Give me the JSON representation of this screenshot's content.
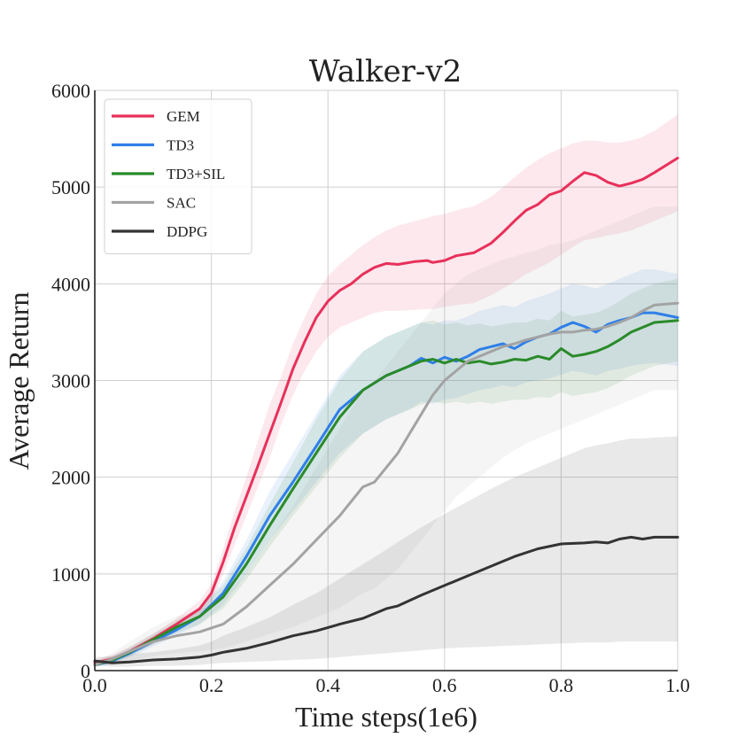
{
  "chart_data": {
    "type": "line",
    "title": "Walker-v2",
    "xlabel": "Time steps(1e6)",
    "ylabel": "Average Return",
    "xlim": [
      0,
      1.0
    ],
    "ylim": [
      0,
      6000
    ],
    "xticks": [
      "0.0",
      "0.2",
      "0.4",
      "0.6",
      "0.8",
      "1.0"
    ],
    "yticks": [
      "0",
      "1000",
      "2000",
      "3000",
      "4000",
      "5000",
      "6000"
    ],
    "grid": true,
    "legend_position": "top-left",
    "series": [
      {
        "name": "GEM",
        "color": "#e8305a",
        "x": [
          0.0,
          0.03,
          0.06,
          0.1,
          0.14,
          0.18,
          0.2,
          0.22,
          0.24,
          0.26,
          0.28,
          0.3,
          0.32,
          0.34,
          0.36,
          0.38,
          0.4,
          0.42,
          0.44,
          0.46,
          0.48,
          0.5,
          0.52,
          0.55,
          0.57,
          0.58,
          0.6,
          0.62,
          0.65,
          0.68,
          0.7,
          0.72,
          0.74,
          0.76,
          0.78,
          0.8,
          0.82,
          0.84,
          0.86,
          0.88,
          0.9,
          0.92,
          0.94,
          0.96,
          1.0
        ],
        "y": [
          80,
          120,
          200,
          330,
          480,
          640,
          800,
          1120,
          1480,
          1800,
          2120,
          2450,
          2780,
          3120,
          3400,
          3650,
          3820,
          3930,
          4000,
          4100,
          4170,
          4210,
          4200,
          4230,
          4240,
          4220,
          4240,
          4290,
          4320,
          4420,
          4530,
          4650,
          4760,
          4820,
          4920,
          4960,
          5060,
          5150,
          5120,
          5050,
          5010,
          5040,
          5080,
          5150,
          5300
        ],
        "lower": [
          60,
          90,
          160,
          280,
          420,
          560,
          700,
          1000,
          1300,
          1600,
          1900,
          2200,
          2550,
          2850,
          3100,
          3300,
          3450,
          3550,
          3600,
          3650,
          3700,
          3720,
          3720,
          3730,
          3740,
          3740,
          3760,
          3780,
          3800,
          3880,
          3950,
          4020,
          4100,
          4160,
          4220,
          4300,
          4380,
          4450,
          4470,
          4500,
          4520,
          4550,
          4600,
          4650,
          4750
        ],
        "upper": [
          110,
          160,
          250,
          380,
          540,
          720,
          900,
          1250,
          1650,
          2000,
          2380,
          2750,
          3050,
          3380,
          3650,
          3900,
          4080,
          4200,
          4300,
          4400,
          4480,
          4550,
          4600,
          4650,
          4680,
          4700,
          4720,
          4760,
          4800,
          4900,
          5000,
          5100,
          5200,
          5280,
          5350,
          5400,
          5450,
          5480,
          5480,
          5460,
          5460,
          5480,
          5520,
          5580,
          5750
        ]
      },
      {
        "name": "TD3",
        "color": "#2f7fe8",
        "x": [
          0.0,
          0.03,
          0.06,
          0.1,
          0.14,
          0.18,
          0.22,
          0.26,
          0.3,
          0.34,
          0.38,
          0.42,
          0.46,
          0.5,
          0.54,
          0.56,
          0.58,
          0.6,
          0.62,
          0.64,
          0.66,
          0.68,
          0.7,
          0.72,
          0.74,
          0.76,
          0.78,
          0.8,
          0.82,
          0.84,
          0.86,
          0.88,
          0.9,
          0.92,
          0.94,
          0.96,
          1.0
        ],
        "y": [
          60,
          100,
          180,
          300,
          420,
          560,
          800,
          1180,
          1600,
          1950,
          2320,
          2700,
          2900,
          3050,
          3150,
          3230,
          3180,
          3240,
          3200,
          3250,
          3320,
          3350,
          3380,
          3330,
          3400,
          3450,
          3480,
          3550,
          3600,
          3560,
          3500,
          3580,
          3620,
          3650,
          3700,
          3700,
          3650
        ],
        "lower": [
          40,
          70,
          140,
          250,
          360,
          480,
          680,
          1000,
          1350,
          1650,
          1950,
          2250,
          2450,
          2600,
          2700,
          2780,
          2760,
          2800,
          2820,
          2860,
          2900,
          2920,
          2950,
          2930,
          2980,
          3000,
          3020,
          3060,
          3100,
          3080,
          3050,
          3100,
          3120,
          3150,
          3170,
          3180,
          3150
        ],
        "upper": [
          90,
          140,
          230,
          360,
          490,
          650,
          920,
          1350,
          1850,
          2250,
          2650,
          3050,
          3300,
          3450,
          3550,
          3600,
          3580,
          3620,
          3620,
          3660,
          3720,
          3750,
          3780,
          3760,
          3820,
          3860,
          3900,
          3950,
          4000,
          3980,
          3950,
          4000,
          4050,
          4100,
          4150,
          4150,
          4100
        ]
      },
      {
        "name": "TD3+SIL",
        "color": "#2a8a2a",
        "x": [
          0.0,
          0.03,
          0.06,
          0.1,
          0.14,
          0.18,
          0.22,
          0.26,
          0.3,
          0.34,
          0.38,
          0.42,
          0.46,
          0.5,
          0.54,
          0.56,
          0.58,
          0.6,
          0.62,
          0.64,
          0.66,
          0.68,
          0.7,
          0.72,
          0.74,
          0.76,
          0.78,
          0.8,
          0.82,
          0.84,
          0.86,
          0.88,
          0.9,
          0.92,
          0.94,
          0.96,
          1.0
        ],
        "y": [
          60,
          110,
          190,
          320,
          450,
          560,
          760,
          1100,
          1500,
          1880,
          2250,
          2620,
          2900,
          3050,
          3150,
          3200,
          3220,
          3180,
          3220,
          3180,
          3200,
          3170,
          3190,
          3220,
          3210,
          3250,
          3220,
          3330,
          3250,
          3270,
          3300,
          3350,
          3420,
          3500,
          3550,
          3600,
          3620
        ],
        "lower": [
          40,
          80,
          150,
          270,
          390,
          480,
          640,
          940,
          1280,
          1600,
          1900,
          2200,
          2450,
          2600,
          2700,
          2750,
          2780,
          2760,
          2780,
          2760,
          2780,
          2760,
          2780,
          2800,
          2800,
          2830,
          2820,
          2880,
          2840,
          2860,
          2880,
          2920,
          2980,
          3050,
          3100,
          3150,
          3200
        ],
        "upper": [
          90,
          150,
          240,
          380,
          520,
          650,
          880,
          1270,
          1720,
          2150,
          2600,
          3000,
          3300,
          3450,
          3550,
          3600,
          3620,
          3580,
          3600,
          3570,
          3590,
          3560,
          3580,
          3600,
          3600,
          3640,
          3620,
          3720,
          3660,
          3680,
          3700,
          3750,
          3820,
          3900,
          3950,
          4000,
          4050
        ]
      },
      {
        "name": "SAC",
        "color": "#a3a3a3",
        "x": [
          0.0,
          0.03,
          0.06,
          0.1,
          0.14,
          0.18,
          0.22,
          0.26,
          0.3,
          0.34,
          0.38,
          0.42,
          0.46,
          0.48,
          0.5,
          0.52,
          0.54,
          0.56,
          0.58,
          0.6,
          0.62,
          0.64,
          0.66,
          0.68,
          0.7,
          0.72,
          0.74,
          0.76,
          0.78,
          0.8,
          0.82,
          0.84,
          0.86,
          0.88,
          0.9,
          0.92,
          0.94,
          0.96,
          1.0
        ],
        "y": [
          60,
          120,
          200,
          300,
          360,
          400,
          480,
          660,
          880,
          1100,
          1350,
          1600,
          1900,
          1950,
          2100,
          2250,
          2450,
          2650,
          2850,
          3000,
          3100,
          3200,
          3250,
          3300,
          3350,
          3380,
          3420,
          3450,
          3480,
          3500,
          3500,
          3520,
          3530,
          3560,
          3600,
          3650,
          3720,
          3780,
          3800
        ],
        "lower": [
          30,
          60,
          100,
          150,
          180,
          200,
          230,
          300,
          380,
          450,
          550,
          650,
          800,
          850,
          950,
          1050,
          1200,
          1350,
          1500,
          1650,
          1800,
          1900,
          2000,
          2100,
          2200,
          2280,
          2350,
          2400,
          2450,
          2500,
          2550,
          2600,
          2650,
          2700,
          2750,
          2800,
          2850,
          2900,
          2900
        ],
        "upper": [
          100,
          180,
          300,
          450,
          560,
          630,
          750,
          1000,
          1350,
          1700,
          2100,
          2500,
          2900,
          3000,
          3150,
          3300,
          3450,
          3600,
          3750,
          3900,
          4000,
          4100,
          4150,
          4200,
          4250,
          4280,
          4320,
          4350,
          4400,
          4420,
          4450,
          4500,
          4550,
          4600,
          4650,
          4700,
          4750,
          4800,
          4800
        ]
      },
      {
        "name": "DDPG",
        "color": "#333333",
        "x": [
          0.0,
          0.03,
          0.06,
          0.1,
          0.14,
          0.18,
          0.2,
          0.22,
          0.26,
          0.3,
          0.34,
          0.38,
          0.42,
          0.46,
          0.5,
          0.52,
          0.56,
          0.6,
          0.64,
          0.68,
          0.72,
          0.76,
          0.8,
          0.84,
          0.86,
          0.88,
          0.9,
          0.92,
          0.94,
          0.96,
          1.0
        ],
        "y": [
          100,
          80,
          90,
          110,
          120,
          140,
          160,
          190,
          230,
          290,
          360,
          410,
          480,
          540,
          640,
          670,
          780,
          880,
          980,
          1080,
          1180,
          1260,
          1310,
          1320,
          1330,
          1320,
          1360,
          1380,
          1360,
          1380,
          1380
        ],
        "lower": [
          60,
          40,
          40,
          50,
          50,
          60,
          70,
          80,
          90,
          100,
          110,
          120,
          140,
          160,
          180,
          190,
          210,
          230,
          240,
          250,
          260,
          270,
          280,
          290,
          290,
          290,
          300,
          300,
          300,
          300,
          300
        ],
        "upper": [
          140,
          150,
          170,
          190,
          220,
          260,
          300,
          360,
          450,
          550,
          680,
          800,
          950,
          1100,
          1250,
          1330,
          1480,
          1620,
          1750,
          1880,
          2000,
          2100,
          2200,
          2300,
          2330,
          2350,
          2380,
          2400,
          2400,
          2410,
          2420
        ]
      }
    ]
  }
}
